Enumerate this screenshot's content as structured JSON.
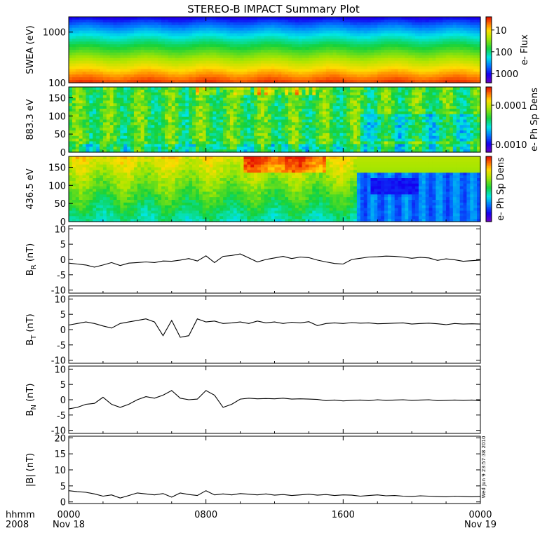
{
  "title": "STEREO-B IMPACT Summary Plot",
  "timestamp_note": "Wed Jun 9 23:57:38 2010",
  "x_axis": {
    "row1_label": "hhmm",
    "row2_label": "2008",
    "ticks": [
      {
        "time": "0000",
        "date": "Nov 18",
        "hour": 0
      },
      {
        "time": "0800",
        "date": "",
        "hour": 8
      },
      {
        "time": "1600",
        "date": "",
        "hour": 16
      },
      {
        "time": "0000",
        "date": "Nov 19",
        "hour": 24
      }
    ],
    "range_hours": [
      0,
      24
    ]
  },
  "chart_data": [
    {
      "type": "heatmap",
      "ylabel": "SWEA (eV)",
      "yscale": "log",
      "ylim": [
        100,
        2000
      ],
      "yticks": [
        "100",
        "1000"
      ],
      "colorbar": {
        "label": "e- Flux",
        "scale": "log",
        "ticks": [
          "10",
          "100",
          "1000"
        ]
      }
    },
    {
      "type": "heatmap",
      "ylabel": "883.3 eV",
      "ylim": [
        0,
        180
      ],
      "yticks": [
        "0",
        "50",
        "100",
        "150"
      ],
      "colorbar": {
        "label": "e- Ph Sp Dens",
        "scale": "log",
        "ticks": [
          "0.0001",
          "0.0010"
        ]
      }
    },
    {
      "type": "heatmap",
      "ylabel": "436.5 eV",
      "ylim": [
        0,
        180
      ],
      "yticks": [
        "0",
        "50",
        "100",
        "150"
      ],
      "colorbar": {
        "label": "e- Ph Sp Dens",
        "scale": "log",
        "ticks": []
      }
    },
    {
      "type": "line",
      "ylabel_main": "B",
      "ylabel_sub": "R",
      "ylabel_unit": " (nT)",
      "ylim": [
        -11,
        11
      ],
      "yticks": [
        "-10",
        "-5",
        "0",
        "5",
        "10"
      ],
      "x": [
        0,
        0.5,
        1,
        1.5,
        2,
        2.5,
        3,
        3.5,
        4,
        4.5,
        5,
        5.5,
        6,
        6.5,
        7,
        7.5,
        8,
        8.5,
        9,
        9.5,
        10,
        10.5,
        11,
        11.5,
        12,
        12.5,
        13,
        13.5,
        14,
        14.5,
        15,
        15.5,
        16,
        16.5,
        17,
        17.5,
        18,
        18.5,
        19,
        19.5,
        20,
        20.5,
        21,
        21.5,
        22,
        22.5,
        23,
        23.5,
        24
      ],
      "values": [
        -1.2,
        -1.5,
        -1.8,
        -2.5,
        -1.8,
        -1.0,
        -2.0,
        -1.2,
        -1.0,
        -0.8,
        -1.0,
        -0.5,
        -0.6,
        -0.2,
        0.3,
        -0.5,
        1.2,
        -1.0,
        1.0,
        1.3,
        1.8,
        0.5,
        -0.8,
        0.0,
        0.5,
        1.0,
        0.3,
        0.8,
        0.6,
        -0.2,
        -0.8,
        -1.3,
        -1.5,
        0.0,
        0.4,
        0.8,
        0.9,
        1.1,
        1.0,
        0.8,
        0.4,
        0.7,
        0.5,
        -0.3,
        0.2,
        -0.1,
        -0.6,
        -0.4,
        -0.2
      ]
    },
    {
      "type": "line",
      "ylabel_main": "B",
      "ylabel_sub": "T",
      "ylabel_unit": " (nT)",
      "ylim": [
        -11,
        11
      ],
      "yticks": [
        "-10",
        "-5",
        "0",
        "5",
        "10"
      ],
      "x": [
        0,
        0.5,
        1,
        1.5,
        2,
        2.5,
        3,
        3.5,
        4,
        4.5,
        5,
        5.5,
        6,
        6.5,
        7,
        7.5,
        8,
        8.5,
        9,
        9.5,
        10,
        10.5,
        11,
        11.5,
        12,
        12.5,
        13,
        13.5,
        14,
        14.5,
        15,
        15.5,
        16,
        16.5,
        17,
        17.5,
        18,
        18.5,
        19,
        19.5,
        20,
        20.5,
        21,
        21.5,
        22,
        22.5,
        23,
        23.5,
        24
      ],
      "values": [
        1.5,
        2.0,
        2.5,
        2.0,
        1.2,
        0.5,
        2.0,
        2.5,
        3.0,
        3.5,
        2.5,
        -2.0,
        3.0,
        -2.5,
        -2.0,
        3.5,
        2.5,
        2.8,
        2.0,
        2.2,
        2.5,
        2.0,
        2.8,
        2.2,
        2.5,
        2.0,
        2.4,
        2.2,
        2.6,
        1.3,
        2.0,
        2.2,
        2.0,
        2.3,
        2.1,
        2.2,
        1.9,
        2.0,
        2.1,
        2.2,
        1.8,
        2.0,
        2.1,
        1.9,
        1.6,
        2.0,
        1.8,
        1.9,
        1.8
      ]
    },
    {
      "type": "line",
      "ylabel_main": "B",
      "ylabel_sub": "N",
      "ylabel_unit": " (nT)",
      "ylim": [
        -11,
        11
      ],
      "yticks": [
        "-10",
        "-5",
        "0",
        "5",
        "10"
      ],
      "x": [
        0,
        0.5,
        1,
        1.5,
        2,
        2.5,
        3,
        3.5,
        4,
        4.5,
        5,
        5.5,
        6,
        6.5,
        7,
        7.5,
        8,
        8.5,
        9,
        9.5,
        10,
        10.5,
        11,
        11.5,
        12,
        12.5,
        13,
        13.5,
        14,
        14.5,
        15,
        15.5,
        16,
        16.5,
        17,
        17.5,
        18,
        18.5,
        19,
        19.5,
        20,
        20.5,
        21,
        21.5,
        22,
        22.5,
        23,
        23.5,
        24
      ],
      "values": [
        -3.0,
        -2.5,
        -1.5,
        -1.2,
        0.8,
        -1.5,
        -2.5,
        -1.5,
        0.0,
        1.0,
        0.5,
        1.5,
        3.0,
        0.5,
        0.0,
        0.2,
        3.0,
        1.5,
        -2.5,
        -1.5,
        0.2,
        0.5,
        0.3,
        0.4,
        0.3,
        0.5,
        0.2,
        0.3,
        0.2,
        0.1,
        -0.3,
        -0.1,
        -0.4,
        -0.2,
        -0.1,
        -0.3,
        0.0,
        -0.2,
        -0.1,
        0.0,
        -0.2,
        -0.1,
        0.0,
        -0.3,
        -0.2,
        -0.1,
        -0.2,
        -0.1,
        -0.3
      ]
    },
    {
      "type": "line",
      "ylabel_main": "|B| (nT)",
      "ylim": [
        -0.5,
        20.5
      ],
      "yticks": [
        "0",
        "5",
        "10",
        "15",
        "20"
      ],
      "x": [
        0,
        0.5,
        1,
        1.5,
        2,
        2.5,
        3,
        3.5,
        4,
        4.5,
        5,
        5.5,
        6,
        6.5,
        7,
        7.5,
        8,
        8.5,
        9,
        9.5,
        10,
        10.5,
        11,
        11.5,
        12,
        12.5,
        13,
        13.5,
        14,
        14.5,
        15,
        15.5,
        16,
        16.5,
        17,
        17.5,
        18,
        18.5,
        19,
        19.5,
        20,
        20.5,
        21,
        21.5,
        22,
        22.5,
        23,
        23.5,
        24
      ],
      "values": [
        3.5,
        3.2,
        3.0,
        2.5,
        1.8,
        2.2,
        1.2,
        2.0,
        2.8,
        2.5,
        2.2,
        2.6,
        1.5,
        2.8,
        2.3,
        2.0,
        3.5,
        2.2,
        2.5,
        2.2,
        2.6,
        2.4,
        2.2,
        2.5,
        2.1,
        2.3,
        2.0,
        2.2,
        2.4,
        2.1,
        2.3,
        2.0,
        2.2,
        2.1,
        1.8,
        2.0,
        2.2,
        1.9,
        2.0,
        1.8,
        1.7,
        1.9,
        1.8,
        1.7,
        1.6,
        1.8,
        1.7,
        1.6,
        1.7
      ]
    }
  ]
}
